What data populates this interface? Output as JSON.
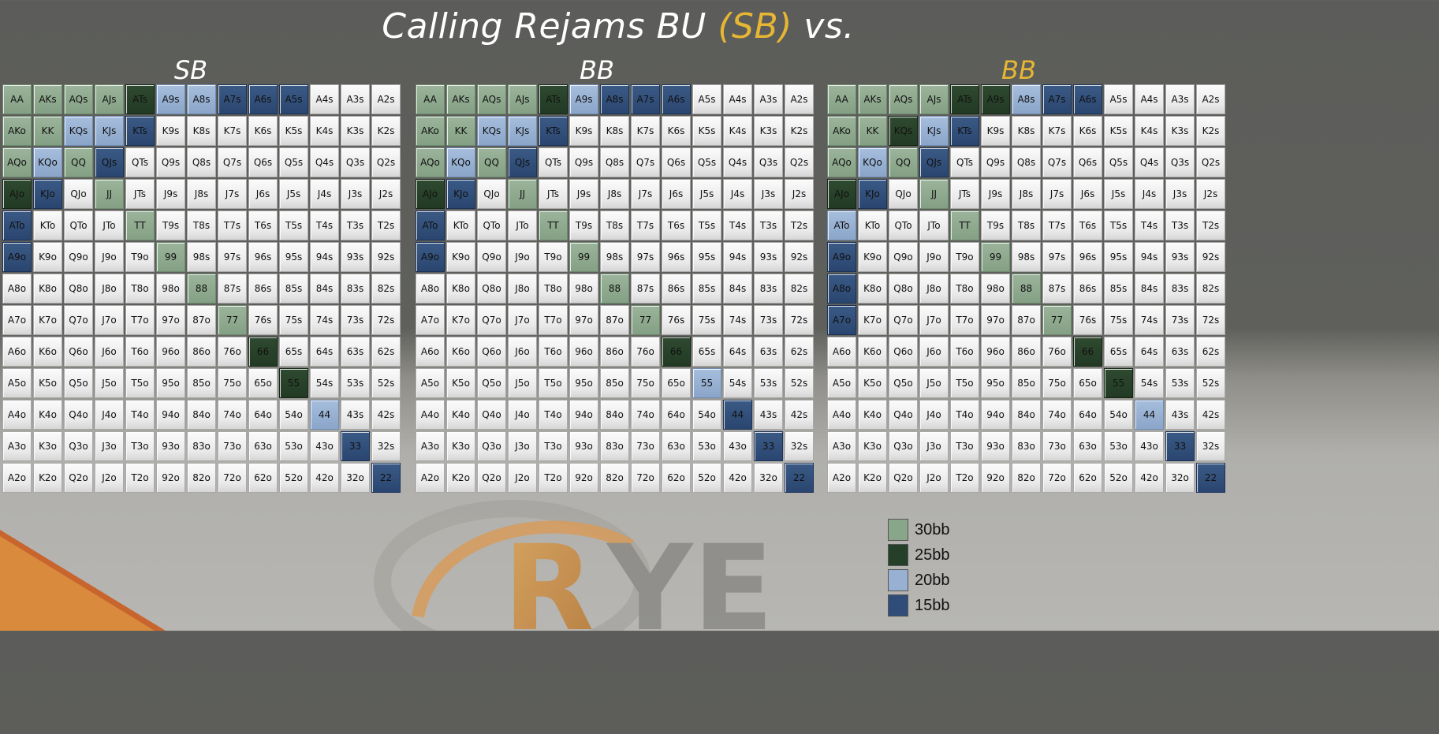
{
  "title": {
    "prefix": "Calling Rejams BU",
    "highlight": "(SB)",
    "suffix": "vs."
  },
  "colors": {
    "30bb": "#8aa68a",
    "25bb": "#263f28",
    "20bb": "#98b0d2",
    "15bb": "#2f4d78",
    "fold": "#ececec",
    "gold": "#e6b634"
  },
  "logo_text": "RYE",
  "legend": [
    {
      "key": "30bb",
      "label": "30bb",
      "color": "#8aa68a"
    },
    {
      "key": "25bb",
      "label": "25bb",
      "color": "#263f28"
    },
    {
      "key": "20bb",
      "label": "20bb",
      "color": "#98b0d2"
    },
    {
      "key": "15bb",
      "label": "15bb",
      "color": "#2f4d78"
    }
  ],
  "hands": [
    [
      "AA",
      "AKs",
      "AQs",
      "AJs",
      "ATs",
      "A9s",
      "A8s",
      "A7s",
      "A6s",
      "A5s",
      "A4s",
      "A3s",
      "A2s"
    ],
    [
      "AKo",
      "KK",
      "KQs",
      "KJs",
      "KTs",
      "K9s",
      "K8s",
      "K7s",
      "K6s",
      "K5s",
      "K4s",
      "K3s",
      "K2s"
    ],
    [
      "AQo",
      "KQo",
      "QQ",
      "QJs",
      "QTs",
      "Q9s",
      "Q8s",
      "Q7s",
      "Q6s",
      "Q5s",
      "Q4s",
      "Q3s",
      "Q2s"
    ],
    [
      "AJo",
      "KJo",
      "QJo",
      "JJ",
      "JTs",
      "J9s",
      "J8s",
      "J7s",
      "J6s",
      "J5s",
      "J4s",
      "J3s",
      "J2s"
    ],
    [
      "ATo",
      "KTo",
      "QTo",
      "JTo",
      "TT",
      "T9s",
      "T8s",
      "T7s",
      "T6s",
      "T5s",
      "T4s",
      "T3s",
      "T2s"
    ],
    [
      "A9o",
      "K9o",
      "Q9o",
      "J9o",
      "T9o",
      "99",
      "98s",
      "97s",
      "96s",
      "95s",
      "94s",
      "93s",
      "92s"
    ],
    [
      "A8o",
      "K8o",
      "Q8o",
      "J8o",
      "T8o",
      "98o",
      "88",
      "87s",
      "86s",
      "85s",
      "84s",
      "83s",
      "82s"
    ],
    [
      "A7o",
      "K7o",
      "Q7o",
      "J7o",
      "T7o",
      "97o",
      "87o",
      "77",
      "76s",
      "75s",
      "74s",
      "73s",
      "72s"
    ],
    [
      "A6o",
      "K6o",
      "Q6o",
      "J6o",
      "T6o",
      "96o",
      "86o",
      "76o",
      "66",
      "65s",
      "64s",
      "63s",
      "62s"
    ],
    [
      "A5o",
      "K5o",
      "Q5o",
      "J5o",
      "T5o",
      "95o",
      "85o",
      "75o",
      "65o",
      "55",
      "54s",
      "53s",
      "52s"
    ],
    [
      "A4o",
      "K4o",
      "Q4o",
      "J4o",
      "T4o",
      "94o",
      "84o",
      "74o",
      "64o",
      "54o",
      "44",
      "43s",
      "42s"
    ],
    [
      "A3o",
      "K3o",
      "Q3o",
      "J3o",
      "T3o",
      "93o",
      "83o",
      "73o",
      "63o",
      "53o",
      "43o",
      "33",
      "32s"
    ],
    [
      "A2o",
      "K2o",
      "Q2o",
      "J2o",
      "T2o",
      "92o",
      "82o",
      "72o",
      "62o",
      "52o",
      "42o",
      "32o",
      "22"
    ]
  ],
  "matrices": [
    {
      "label": "SB",
      "label_color": "white",
      "ranges": {
        "AA": "30bb",
        "AKs": "30bb",
        "AQs": "30bb",
        "AJs": "30bb",
        "ATs": "25bb",
        "A9s": "20bb",
        "A8s": "20bb",
        "A7s": "15bb",
        "A6s": "15bb",
        "A5s": "15bb",
        "AKo": "30bb",
        "KK": "30bb",
        "KQs": "20bb",
        "KJs": "20bb",
        "KTs": "15bb",
        "AQo": "30bb",
        "KQo": "20bb",
        "QQ": "30bb",
        "QJs": "15bb",
        "AJo": "25bb",
        "KJo": "15bb",
        "JJ": "30bb",
        "ATo": "15bb",
        "TT": "30bb",
        "A9o": "15bb",
        "99": "30bb",
        "88": "30bb",
        "77": "30bb",
        "66": "25bb",
        "55": "25bb",
        "44": "20bb",
        "33": "15bb",
        "22": "15bb"
      }
    },
    {
      "label": "BB",
      "label_color": "white",
      "ranges": {
        "AA": "30bb",
        "AKs": "30bb",
        "AQs": "30bb",
        "AJs": "30bb",
        "ATs": "25bb",
        "A9s": "20bb",
        "A8s": "15bb",
        "A7s": "15bb",
        "A6s": "15bb",
        "AKo": "30bb",
        "KK": "30bb",
        "KQs": "20bb",
        "KJs": "20bb",
        "KTs": "15bb",
        "AQo": "30bb",
        "KQo": "20bb",
        "QQ": "30bb",
        "QJs": "15bb",
        "AJo": "25bb",
        "KJo": "15bb",
        "JJ": "30bb",
        "ATo": "15bb",
        "TT": "30bb",
        "A9o": "15bb",
        "99": "30bb",
        "88": "30bb",
        "77": "30bb",
        "66": "25bb",
        "55": "20bb",
        "44": "15bb",
        "33": "15bb",
        "22": "15bb"
      }
    },
    {
      "label": "BB",
      "label_color": "gold",
      "ranges": {
        "AA": "30bb",
        "AKs": "30bb",
        "AQs": "30bb",
        "AJs": "30bb",
        "ATs": "25bb",
        "A9s": "25bb",
        "A8s": "20bb",
        "A7s": "15bb",
        "A6s": "15bb",
        "AKo": "30bb",
        "KK": "30bb",
        "KQs": "25bb",
        "KJs": "20bb",
        "KTs": "15bb",
        "AQo": "30bb",
        "KQo": "20bb",
        "QQ": "30bb",
        "QJs": "15bb",
        "AJo": "25bb",
        "KJo": "15bb",
        "JJ": "30bb",
        "ATo": "20bb",
        "TT": "30bb",
        "A9o": "15bb",
        "99": "30bb",
        "A8o": "15bb",
        "88": "30bb",
        "A7o": "15bb",
        "77": "30bb",
        "66": "25bb",
        "55": "25bb",
        "44": "20bb",
        "33": "15bb",
        "22": "15bb"
      }
    }
  ]
}
